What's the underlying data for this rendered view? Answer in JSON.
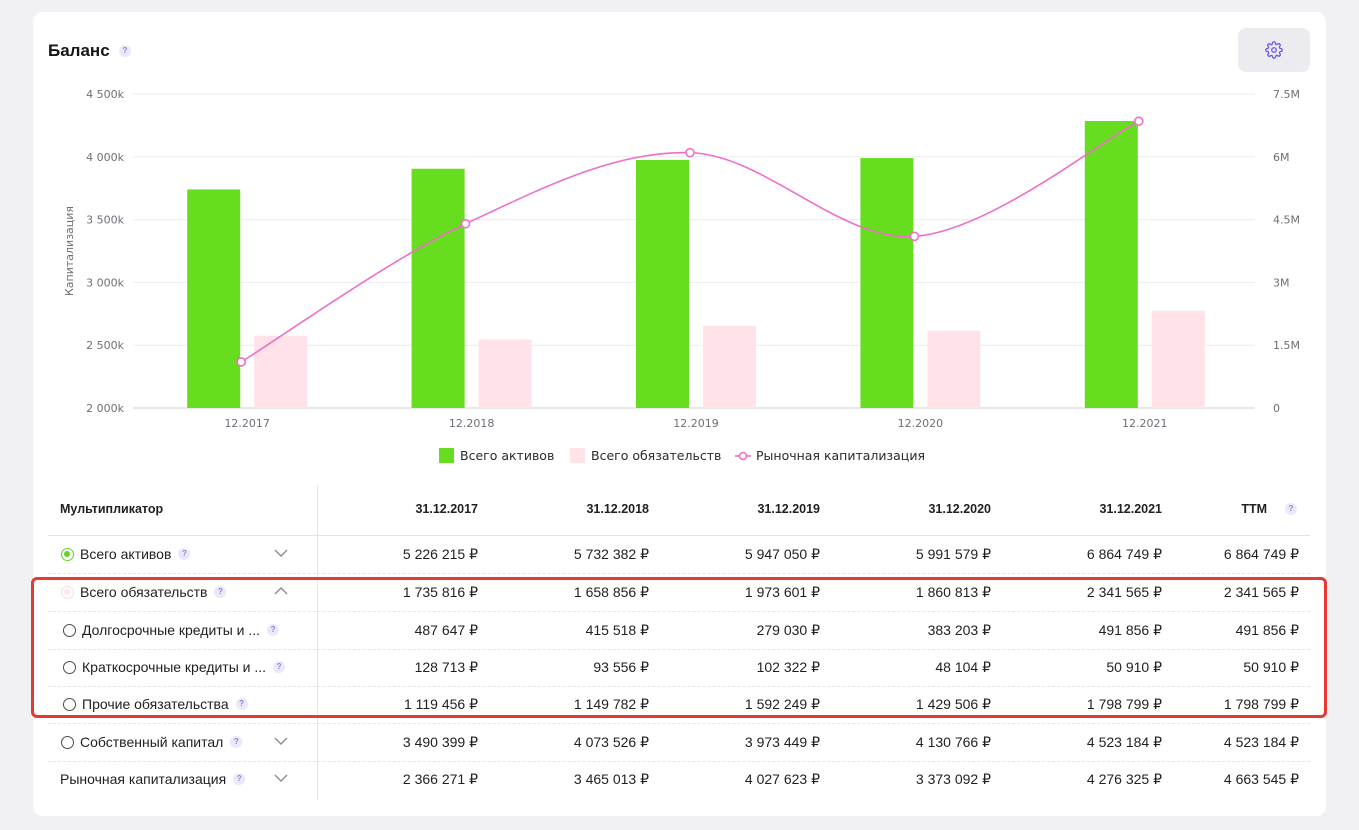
{
  "title": "Баланс",
  "help_glyph": "?",
  "icons": {
    "settings": "gear-icon",
    "help": "question-icon",
    "expand": "chevron-down-icon",
    "collapse": "chevron-up-icon"
  },
  "colors": {
    "assets": "#66dd1f",
    "liabilities": "#ffe3e8",
    "market_cap": "#f06ec8",
    "highlight": "#e53935"
  },
  "chart_data": {
    "type": "bar",
    "categories": [
      "12.2017",
      "12.2018",
      "12.2019",
      "12.2020",
      "12.2021"
    ],
    "ylabel": "Капитализация",
    "ylim": [
      2000,
      4500
    ],
    "y_ticks": [
      "2 000k",
      "2 500k",
      "3 000k",
      "3 500k",
      "4 000k",
      "4 500k"
    ],
    "y2lim": [
      0,
      7.5
    ],
    "y2_ticks": [
      "0",
      "1.5M",
      "3M",
      "4.5M",
      "6M",
      "7.5M"
    ],
    "series": [
      {
        "name": "Всего активов",
        "type": "bar",
        "axis": "left",
        "values": [
          3740,
          3905,
          3975,
          3990,
          4285
        ]
      },
      {
        "name": "Всего обязательств",
        "type": "bar",
        "axis": "left",
        "values": [
          2575,
          2545,
          2655,
          2615,
          2775
        ]
      },
      {
        "name": "Рыночная капитализация",
        "type": "line",
        "axis": "right",
        "values": [
          1.1,
          4.4,
          6.1,
          4.1,
          6.85
        ]
      }
    ],
    "legend_position": "bottom-center"
  },
  "table": {
    "header_label": "Мультипликатор",
    "columns": [
      "31.12.2017",
      "31.12.2018",
      "31.12.2019",
      "31.12.2020",
      "31.12.2021",
      "TTM"
    ],
    "rows": [
      {
        "label": "Всего активов",
        "values": [
          "5 226 215 ₽",
          "5 732 382 ₽",
          "5 947 050 ₽",
          "5 991 579 ₽",
          "6 864 749 ₽",
          "6 864 749 ₽"
        ]
      },
      {
        "label": "Всего обязательств",
        "values": [
          "1 735 816 ₽",
          "1 658 856 ₽",
          "1 973 601 ₽",
          "1 860 813 ₽",
          "2 341 565 ₽",
          "2 341 565 ₽"
        ]
      },
      {
        "label": "Долгосрочные кредиты и ...",
        "values": [
          "487 647 ₽",
          "415 518 ₽",
          "279 030 ₽",
          "383 203 ₽",
          "491 856 ₽",
          "491 856 ₽"
        ]
      },
      {
        "label": "Краткосрочные кредиты и ...",
        "values": [
          "128 713 ₽",
          "93 556 ₽",
          "102 322 ₽",
          "48 104 ₽",
          "50 910 ₽",
          "50 910 ₽"
        ]
      },
      {
        "label": "Прочие обязательства",
        "values": [
          "1 119 456 ₽",
          "1 149 782 ₽",
          "1 592 249 ₽",
          "1 429 506 ₽",
          "1 798 799 ₽",
          "1 798 799 ₽"
        ]
      },
      {
        "label": "Собственный капитал",
        "values": [
          "3 490 399 ₽",
          "4 073 526 ₽",
          "3 973 449 ₽",
          "4 130 766 ₽",
          "4 523 184 ₽",
          "4 523 184 ₽"
        ]
      },
      {
        "label": "Рыночная капитализация",
        "values": [
          "2 366 271 ₽",
          "3 465 013 ₽",
          "4 027 623 ₽",
          "3 373 092 ₽",
          "4 276 325 ₽",
          "4 663 545 ₽"
        ]
      }
    ]
  }
}
